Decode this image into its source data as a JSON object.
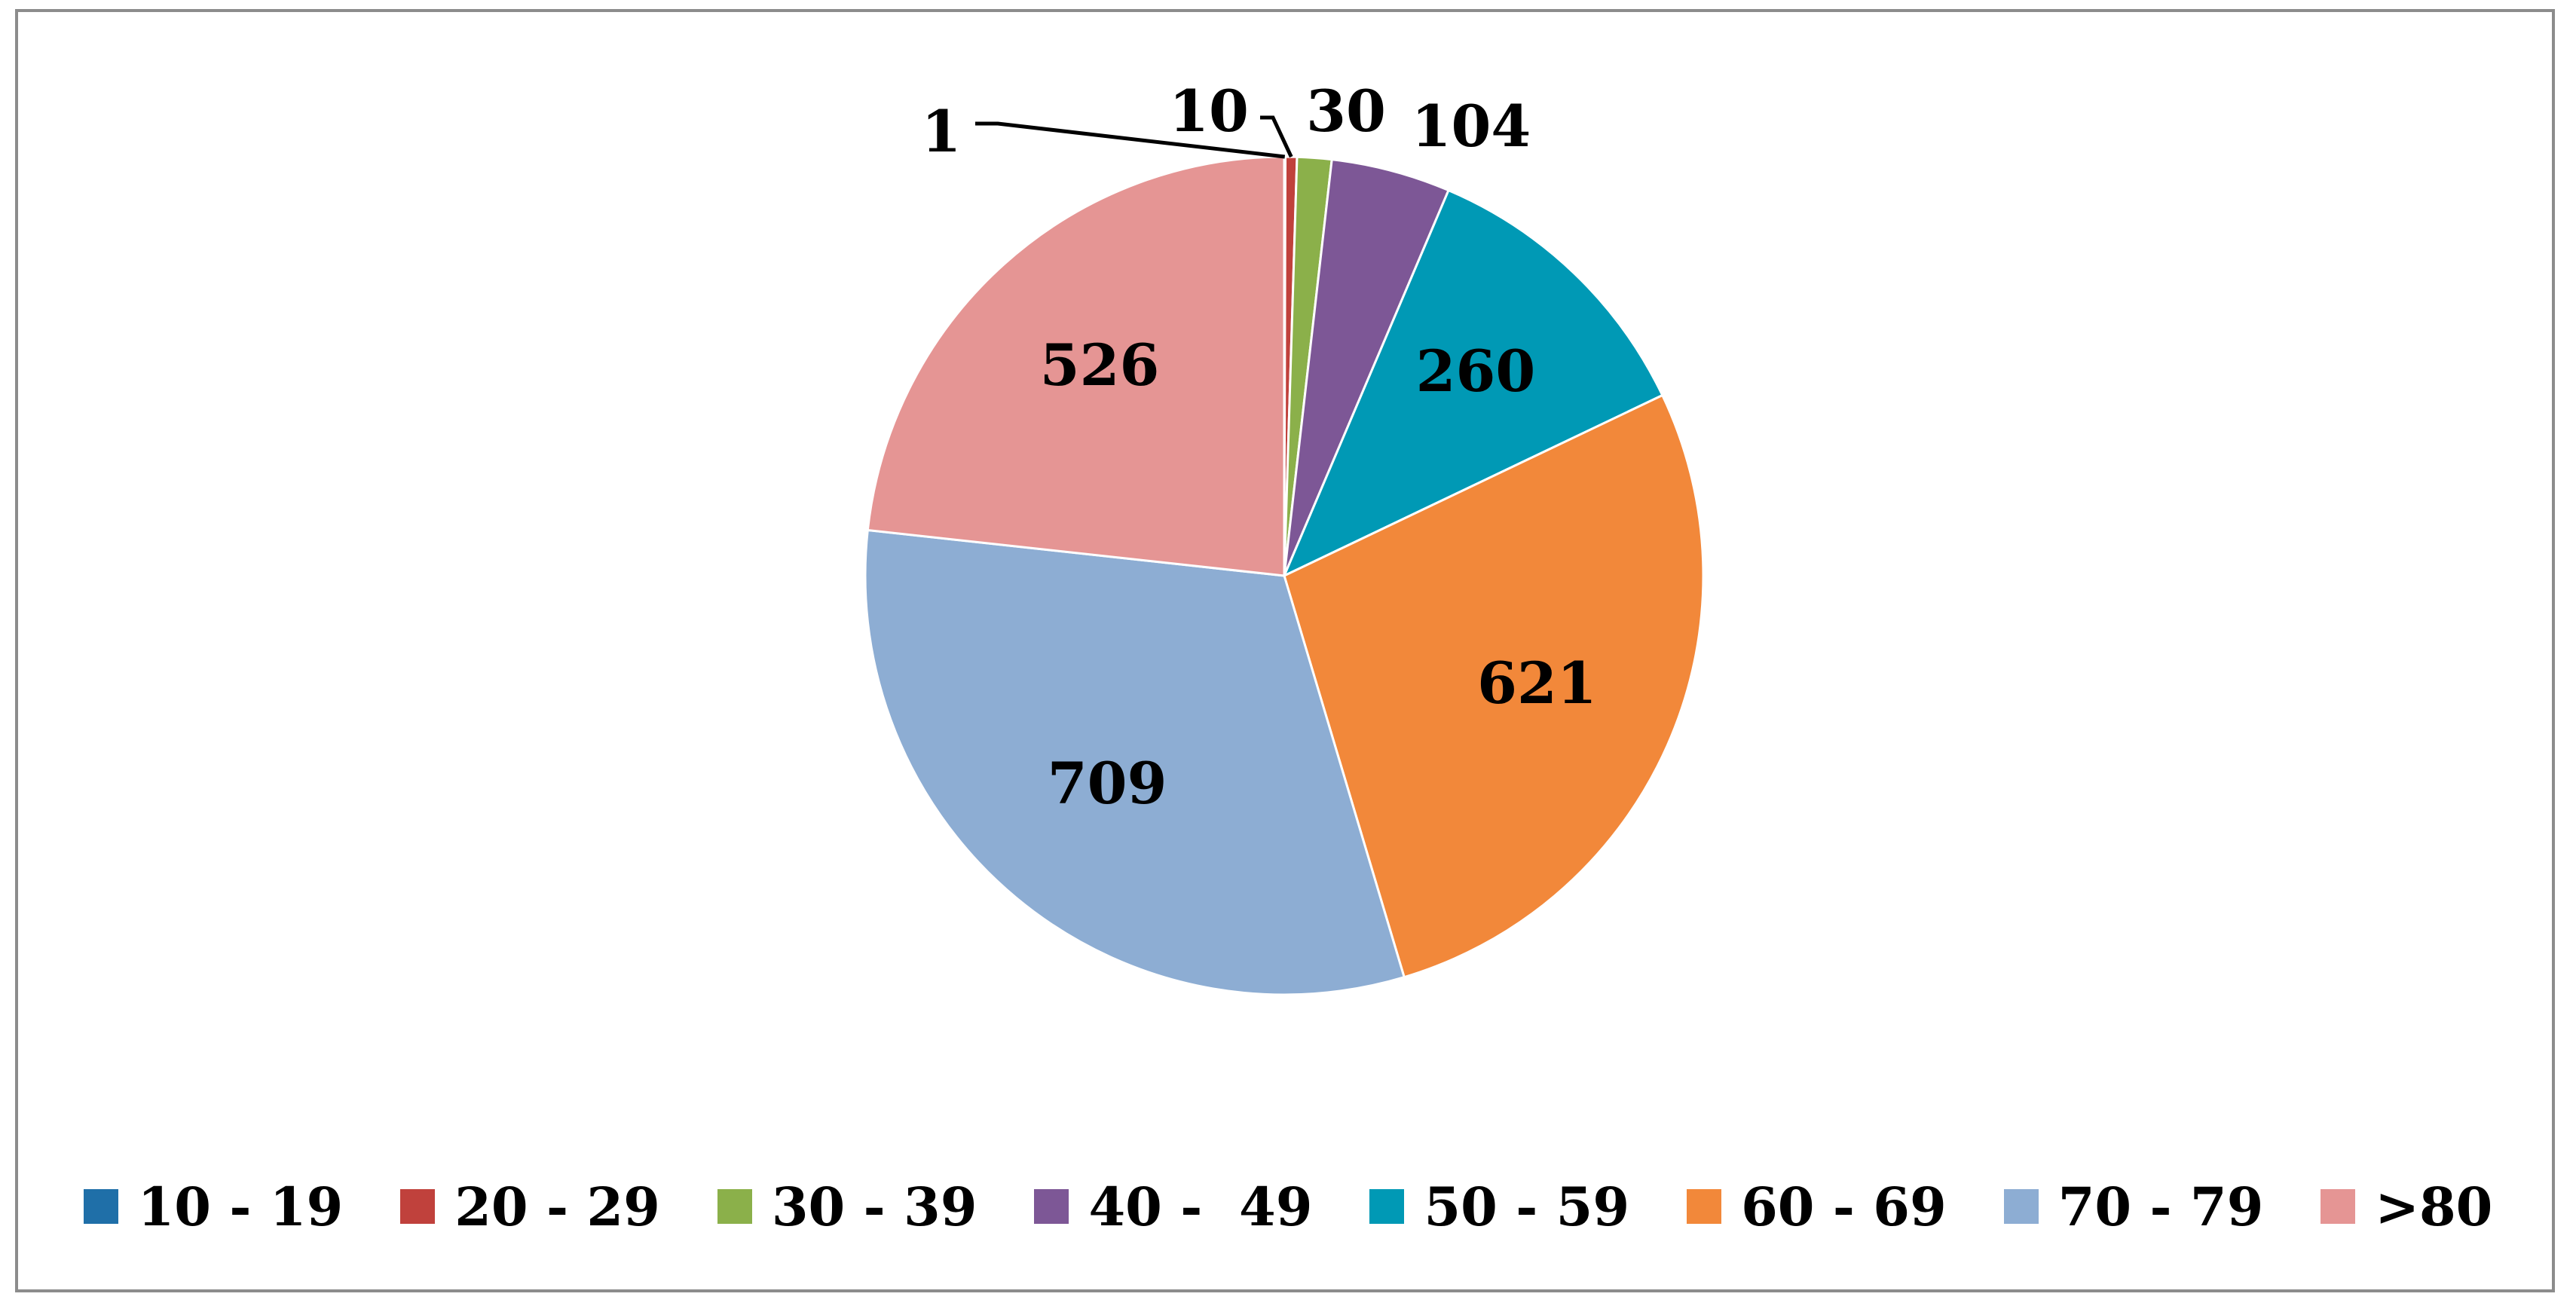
{
  "chart_data": {
    "type": "pie",
    "title": "",
    "categories": [
      "10 - 19",
      "20 - 29",
      "30 - 39",
      "40 -  49",
      "50 - 59",
      "60 - 69",
      "70 - 79",
      ">80"
    ],
    "values": [
      1,
      10,
      30,
      104,
      260,
      621,
      709,
      526
    ],
    "data_labels": [
      "1",
      "10",
      "30",
      "104",
      "260",
      "621",
      "709",
      "526"
    ],
    "colors": [
      "#1f6fa8",
      "#c0413c",
      "#8bb04a",
      "#7d5796",
      "#0099b5",
      "#f2883a",
      "#8dadd3",
      "#e59594"
    ],
    "start_angle_deg": 0,
    "direction": "clockwise",
    "legend_position": "bottom"
  }
}
